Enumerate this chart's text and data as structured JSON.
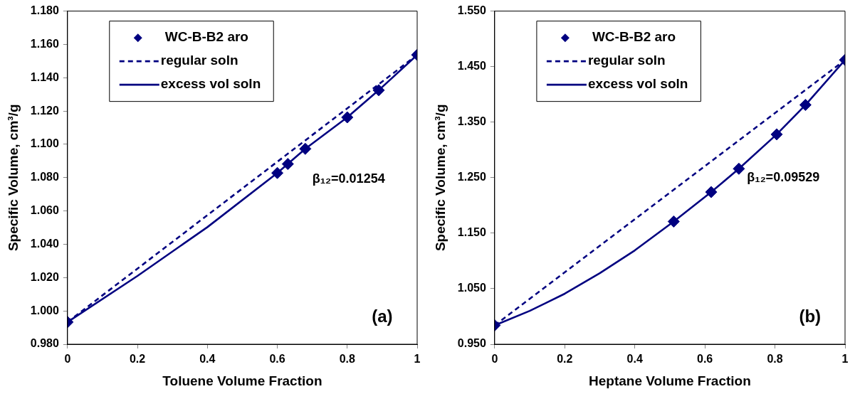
{
  "chart_data": [
    {
      "type": "line",
      "xlabel": "Toluene Volume Fraction",
      "ylabel": "Specific Volume, cm³/g",
      "xlim": [
        0,
        1
      ],
      "xticks": [
        0,
        0.2,
        0.4,
        0.6,
        0.8,
        1
      ],
      "ylim": [
        0.98,
        1.18
      ],
      "yticks": [
        {
          "value": 0.98,
          "label": "0.980"
        },
        {
          "value": 1.0,
          "label": "1.000"
        },
        {
          "value": 1.02,
          "label": "1.020"
        },
        {
          "value": 1.04,
          "label": "1.040"
        },
        {
          "value": 1.06,
          "label": "1.060"
        },
        {
          "value": 1.08,
          "label": "1.080"
        },
        {
          "value": 1.1,
          "label": "1.100"
        },
        {
          "value": 1.12,
          "label": "1.120"
        },
        {
          "value": 1.14,
          "label": "1.140"
        },
        {
          "value": 1.16,
          "label": "1.160"
        },
        {
          "value": 1.18,
          "label": "1.180"
        }
      ],
      "grid": false,
      "legend": "top left",
      "annotations": [
        "β₁₂=0.01254",
        "(a)"
      ],
      "series": [
        {
          "name": "WC-B-B2 aro",
          "type": "scatter",
          "marker": "diamond",
          "color": "#000080",
          "x": [
            0,
            0.6,
            0.63,
            0.68,
            0.8,
            0.89,
            1
          ],
          "values": [
            0.9933,
            1.0828,
            1.0882,
            1.0973,
            1.1162,
            1.1325,
            1.1537
          ]
        },
        {
          "name": "regular soln",
          "type": "line",
          "marker": "none",
          "line_style": "dashed",
          "color": "#000080",
          "x": [
            0,
            1
          ],
          "values": [
            0.9933,
            1.1537
          ]
        },
        {
          "name": "excess vol soln",
          "type": "line",
          "marker": "none",
          "line_style": "solid",
          "color": "#000080",
          "x": [
            0,
            0.2,
            0.4,
            0.6,
            0.63,
            0.68,
            0.8,
            0.89,
            1
          ],
          "values": [
            0.9933,
            1.021,
            1.0503,
            1.0828,
            1.0882,
            1.0973,
            1.1162,
            1.1325,
            1.1537
          ]
        }
      ]
    },
    {
      "type": "line",
      "xlabel": "Heptane Volume Fraction",
      "ylabel": "Specific Volume, cm³/g",
      "xlim": [
        0,
        1
      ],
      "xticks": [
        0,
        0.2,
        0.4,
        0.6,
        0.8,
        1
      ],
      "ylim": [
        0.95,
        1.55
      ],
      "yticks": [
        {
          "value": 0.95,
          "label": "0.950"
        },
        {
          "value": 1.05,
          "label": "1.050"
        },
        {
          "value": 1.15,
          "label": "1.150"
        },
        {
          "value": 1.25,
          "label": "1.250"
        },
        {
          "value": 1.35,
          "label": "1.350"
        },
        {
          "value": 1.45,
          "label": "1.450"
        },
        {
          "value": 1.55,
          "label": "1.550"
        }
      ],
      "grid": false,
      "legend": "top left",
      "annotations": [
        "β₁₂=0.09529",
        "(b)"
      ],
      "series": [
        {
          "name": "WC-B-B2 aro",
          "type": "scatter",
          "marker": "diamond",
          "color": "#000080",
          "x": [
            0,
            0.511,
            0.618,
            0.697,
            0.805,
            0.887,
            1
          ],
          "values": [
            0.984,
            1.171,
            1.224,
            1.266,
            1.328,
            1.381,
            1.462
          ]
        },
        {
          "name": "regular soln",
          "type": "line",
          "marker": "none",
          "line_style": "dashed",
          "color": "#000080",
          "x": [
            0,
            1
          ],
          "values": [
            0.984,
            1.462
          ]
        },
        {
          "name": "excess vol soln",
          "type": "line",
          "marker": "none",
          "line_style": "solid",
          "color": "#000080",
          "x": [
            0,
            0.1,
            0.2,
            0.3,
            0.4,
            0.511,
            0.618,
            0.697,
            0.805,
            0.887,
            1
          ],
          "values": [
            0.984,
            1.01,
            1.041,
            1.078,
            1.119,
            1.171,
            1.224,
            1.266,
            1.328,
            1.381,
            1.462
          ]
        }
      ]
    }
  ]
}
